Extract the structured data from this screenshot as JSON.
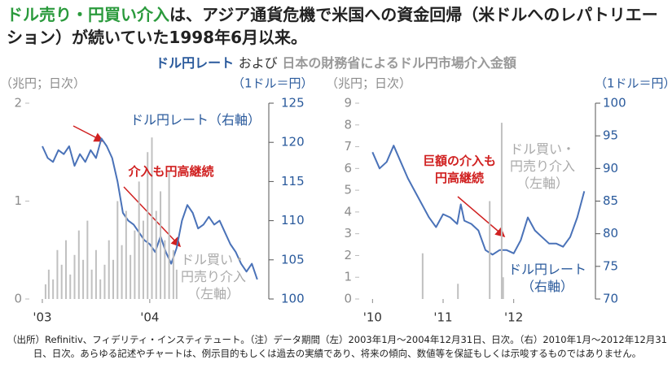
{
  "header": {
    "title_highlight": "ドル売り・円買い介入",
    "title": "は、アジア通貨危機で米国への資金回帰（米ドルへのレパトリエーション）が続いていた1998年6月以来。",
    "subtitle_part1": "ドル円レート",
    "subtitle_part2": "および",
    "subtitle_part3": "日本の財務省によるドル円市場介入金額"
  },
  "chart_data": [
    {
      "type": "combo",
      "ylabel": "（兆円；日次）",
      "y2label": "（1ドル＝円）",
      "xlim": [
        2002.97,
        2005.07
      ],
      "xticks": [
        {
          "value": 2003,
          "label": "'03"
        },
        {
          "value": 2004,
          "label": "'04"
        }
      ],
      "ylim": [
        0,
        2
      ],
      "yticks": [
        0,
        1,
        2
      ],
      "y2lim": [
        100,
        125
      ],
      "y2ticks": [
        100,
        105,
        110,
        115,
        120,
        125
      ],
      "annotation": "介入も円高継続",
      "series": [
        {
          "name": "ドル円レート（右軸）",
          "type": "line",
          "axis": "y2",
          "color": "#4a72b8",
          "x": [
            2003.0,
            2003.05,
            2003.1,
            2003.15,
            2003.2,
            2003.25,
            2003.3,
            2003.35,
            2003.4,
            2003.45,
            2003.5,
            2003.55,
            2003.6,
            2003.65,
            2003.7,
            2003.75,
            2003.8,
            2003.85,
            2003.9,
            2003.95,
            2004.0,
            2004.05,
            2004.1,
            2004.15,
            2004.2,
            2004.25,
            2004.3,
            2004.35,
            2004.4,
            2004.45,
            2004.5,
            2004.55,
            2004.6,
            2004.65,
            2004.7,
            2004.75,
            2004.8,
            2004.85,
            2004.9,
            2004.95,
            2005.0
          ],
          "values": [
            119.5,
            118,
            117.5,
            119,
            118.5,
            119.5,
            117,
            118.5,
            117.5,
            119,
            118,
            120.5,
            119.5,
            118,
            115,
            111,
            110,
            109.5,
            108.5,
            107.5,
            107,
            106,
            108,
            106,
            104.5,
            106.5,
            110,
            112,
            111,
            109,
            109.5,
            110.5,
            109.5,
            110,
            108.5,
            107,
            106,
            104.5,
            103.5,
            104.5,
            102.5
          ]
        },
        {
          "name": "ドル買い・円売り介入（左軸）",
          "type": "bar",
          "color": "#c0c0c0",
          "x": [
            2003.03,
            2003.06,
            2003.1,
            2003.14,
            2003.18,
            2003.22,
            2003.26,
            2003.3,
            2003.34,
            2003.38,
            2003.42,
            2003.46,
            2003.5,
            2003.54,
            2003.58,
            2003.62,
            2003.66,
            2003.7,
            2003.74,
            2003.78,
            2003.82,
            2003.86,
            2003.9,
            2003.94,
            2003.98,
            2004.02,
            2004.06,
            2004.1,
            2004.14,
            2004.18,
            2004.22,
            2004.25
          ],
          "values": [
            0.15,
            0.3,
            0.2,
            0.5,
            0.35,
            0.6,
            0.25,
            0.45,
            0.7,
            0.4,
            0.8,
            0.3,
            0.5,
            0.2,
            0.35,
            0.6,
            0.4,
            1.0,
            0.55,
            0.9,
            0.45,
            0.7,
            1.2,
            0.8,
            1.5,
            1.65,
            0.9,
            1.1,
            0.6,
            1.3,
            0.5,
            0.3
          ]
        }
      ]
    },
    {
      "type": "combo",
      "ylabel": "（兆円；日次）",
      "y2label": "（1ドル＝円）",
      "xlim": [
        2009.95,
        2013.1
      ],
      "xticks": [
        {
          "value": 2010,
          "label": "'10"
        },
        {
          "value": 2011,
          "label": "'11"
        },
        {
          "value": 2012,
          "label": "'12"
        }
      ],
      "ylim": [
        0,
        9
      ],
      "yticks": [
        0,
        1,
        2,
        3,
        4,
        5,
        6,
        7,
        8,
        9
      ],
      "y2lim": [
        70,
        100
      ],
      "y2ticks": [
        70,
        75,
        80,
        85,
        90,
        95,
        100
      ],
      "annotation": "巨額の介入も円高継続",
      "series": [
        {
          "name": "ドル円レート（右軸）",
          "type": "line",
          "axis": "y2",
          "color": "#4a72b8",
          "x": [
            2010.0,
            2010.1,
            2010.2,
            2010.3,
            2010.4,
            2010.5,
            2010.6,
            2010.7,
            2010.8,
            2010.9,
            2011.0,
            2011.1,
            2011.2,
            2011.25,
            2011.3,
            2011.4,
            2011.5,
            2011.6,
            2011.7,
            2011.8,
            2011.9,
            2012.0,
            2012.1,
            2012.2,
            2012.3,
            2012.4,
            2012.5,
            2012.6,
            2012.7,
            2012.8,
            2012.9,
            2013.0
          ],
          "values": [
            92.5,
            90,
            91,
            93.5,
            91,
            88.5,
            86.5,
            84.5,
            82.5,
            81,
            83,
            82.5,
            81.5,
            84.5,
            82,
            81.5,
            80.5,
            77.5,
            76.8,
            77.5,
            77.5,
            77,
            79,
            82.5,
            80.5,
            79.5,
            78.5,
            78.5,
            78,
            79.5,
            82.5,
            86.5
          ]
        },
        {
          "name": "ドル買い・円売り介入（左軸）",
          "type": "bar",
          "color": "#c0c0c0",
          "x": [
            2010.71,
            2011.21,
            2011.66,
            2011.83,
            2011.85
          ],
          "values": [
            2.1,
            0.7,
            4.5,
            8.1,
            1.0
          ]
        }
      ]
    }
  ],
  "footnote": "（出所）Refinitiv、フィデリティ・インスティテュート。（注）データ期間（左）2003年1月～2004年12月31日、日次。（右）2010年1月～2012年12月31日、日次。あらゆる記述やチャートは、例示目的もしくは過去の実績であり、将来の傾向、数値等を保証もしくは示唆するものではありません。"
}
